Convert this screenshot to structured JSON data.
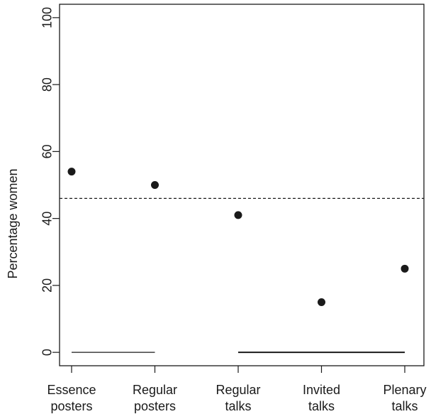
{
  "chart_data": {
    "type": "scatter",
    "title": "",
    "xlabel": "",
    "ylabel": "Percentage women",
    "categories": [
      [
        "Essence",
        "posters"
      ],
      [
        "Regular",
        "posters"
      ],
      [
        "Regular",
        "talks"
      ],
      [
        "Invited",
        "talks"
      ],
      [
        "Plenary",
        "talks"
      ]
    ],
    "values": [
      54,
      50,
      41,
      15,
      25
    ],
    "ylim": [
      -4,
      104
    ],
    "yticks": [
      "0",
      "20",
      "40",
      "60",
      "80",
      "100"
    ],
    "reference_line": {
      "value": 46,
      "style": "dashed"
    },
    "group_bars": [
      {
        "from_category": 0,
        "to_category": 1,
        "value": 0
      },
      {
        "from_category": 2,
        "to_category": 4,
        "value": 0
      }
    ],
    "grid": false,
    "legend": "none",
    "colors": {
      "points": "#1a1a1a",
      "axes": "#1a1a1a",
      "background": "#ffffff"
    }
  }
}
